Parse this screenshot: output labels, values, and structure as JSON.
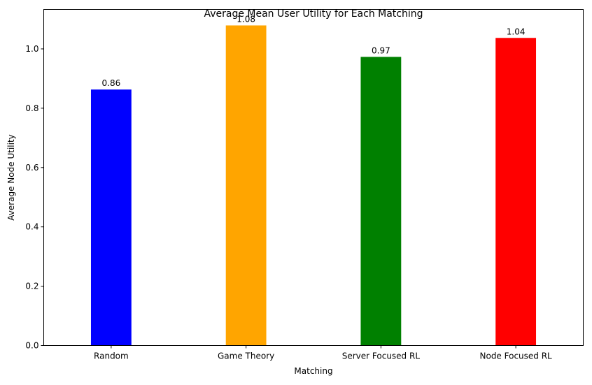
{
  "chart_data": {
    "type": "bar",
    "title": "Average Mean User Utility for Each Matching",
    "xlabel": "Matching",
    "ylabel": "Average Node Utility",
    "categories": [
      "Random",
      "Game Theory",
      "Server Focused RL",
      "Node Focused RL"
    ],
    "values": [
      0.863,
      1.079,
      0.973,
      1.037
    ],
    "data_labels": [
      "0.86",
      "1.08",
      "0.97",
      "1.04"
    ],
    "colors": [
      "#0000ff",
      "#ffa500",
      "#008000",
      "#ff0000"
    ],
    "ylim": [
      0,
      1.133
    ],
    "yticks": [
      0.0,
      0.2,
      0.4,
      0.6,
      0.8,
      1.0
    ],
    "ytick_labels": [
      "0.0",
      "0.2",
      "0.4",
      "0.6",
      "0.8",
      "1.0"
    ],
    "grid": false,
    "legend": "none"
  }
}
